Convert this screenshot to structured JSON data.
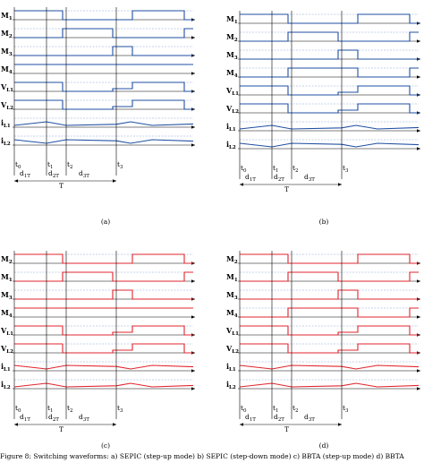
{
  "colors": {
    "blue": "#1f4fa3",
    "red": "#e0242c",
    "grid": "#6a8cc8",
    "axis": "#000000"
  },
  "panels": [
    {
      "id": "a",
      "caption": "(a)",
      "color_key": "blue",
      "signals": [
        {
          "label": "M",
          "sub": "1",
          "levels": [
            1,
            1,
            0,
            0,
            0,
            1,
            1,
            0,
            0
          ]
        },
        {
          "label": "M",
          "sub": "2",
          "levels": [
            0,
            0,
            1,
            1,
            0,
            0,
            0,
            1,
            1
          ]
        },
        {
          "label": "M",
          "sub": "3",
          "levels": [
            0,
            0,
            0,
            0,
            1,
            0,
            0,
            0,
            0
          ]
        },
        {
          "label": "M",
          "sub": "4",
          "levels": [
            1,
            1,
            1,
            1,
            1,
            1,
            1,
            1,
            1
          ]
        },
        {
          "label": "V",
          "sub": "L1",
          "levels": [
            1,
            1,
            0,
            0,
            0.3,
            1,
            1,
            0,
            0
          ]
        },
        {
          "label": "V",
          "sub": "L2",
          "levels": [
            1,
            1,
            0,
            0,
            0.3,
            1,
            1,
            0,
            0
          ]
        },
        {
          "label": "i",
          "sub": "L1",
          "wave": "tri-up"
        },
        {
          "label": "i",
          "sub": "L2",
          "wave": "tri-down"
        }
      ],
      "times": [
        "t0",
        "t1",
        "t2",
        "t3"
      ],
      "durations": [
        "d1T",
        "d2T",
        "d3T"
      ],
      "period": "T"
    },
    {
      "id": "b",
      "caption": "(b)",
      "color_key": "blue",
      "signals": [
        {
          "label": "M",
          "sub": "1",
          "levels": [
            1,
            1,
            0,
            0,
            0,
            1,
            1,
            0,
            0
          ]
        },
        {
          "label": "M",
          "sub": "2",
          "levels": [
            0,
            0,
            1,
            1,
            0,
            0,
            0,
            1,
            1
          ]
        },
        {
          "label": "M",
          "sub": "3",
          "levels": [
            0,
            0,
            0,
            0,
            1,
            0,
            0,
            0,
            0
          ]
        },
        {
          "label": "M",
          "sub": "4",
          "levels": [
            0,
            0,
            1,
            1,
            1,
            0,
            0,
            1,
            1
          ]
        },
        {
          "label": "V",
          "sub": "L1",
          "levels": [
            1,
            1,
            0,
            0,
            0.3,
            1,
            1,
            0,
            0
          ]
        },
        {
          "label": "V",
          "sub": "L2",
          "levels": [
            1,
            1,
            0,
            0,
            0.3,
            1,
            1,
            0,
            0
          ]
        },
        {
          "label": "i",
          "sub": "L1",
          "wave": "tri-up"
        },
        {
          "label": "i",
          "sub": "L2",
          "wave": "tri-down"
        }
      ],
      "times": [
        "t0",
        "t1",
        "t2",
        "t3"
      ],
      "durations": [
        "d1T",
        "d2T",
        "d3T"
      ],
      "period": "T"
    },
    {
      "id": "c",
      "caption": "(c)",
      "color_key": "red",
      "signals": [
        {
          "label": "M",
          "sub": "2",
          "levels": [
            1,
            1,
            0,
            0,
            0,
            1,
            1,
            0,
            0
          ]
        },
        {
          "label": "M",
          "sub": "1",
          "levels": [
            0,
            0,
            1,
            1,
            0,
            0,
            0,
            1,
            1
          ]
        },
        {
          "label": "M",
          "sub": "3",
          "levels": [
            0,
            0,
            0,
            0,
            1,
            0,
            0,
            0,
            0
          ]
        },
        {
          "label": "M",
          "sub": "4",
          "levels": [
            1,
            1,
            1,
            1,
            1,
            1,
            1,
            1,
            1
          ]
        },
        {
          "label": "V",
          "sub": "L1",
          "levels": [
            1,
            1,
            0,
            0,
            0.3,
            1,
            1,
            0,
            0
          ]
        },
        {
          "label": "V",
          "sub": "L2",
          "levels": [
            1,
            1,
            0,
            0,
            0.3,
            1,
            1,
            0,
            0
          ]
        },
        {
          "label": "i",
          "sub": "L1",
          "wave": "tri-down"
        },
        {
          "label": "i",
          "sub": "L2",
          "wave": "tri-up"
        }
      ],
      "times": [
        "t0",
        "t1",
        "t2",
        "t3"
      ],
      "durations": [
        "d1T",
        "d2T",
        "d3T"
      ],
      "period": "T"
    },
    {
      "id": "d",
      "caption": "(d)",
      "color_key": "red",
      "signals": [
        {
          "label": "M",
          "sub": "2",
          "levels": [
            1,
            1,
            0,
            0,
            0,
            1,
            1,
            0,
            0
          ]
        },
        {
          "label": "M",
          "sub": "1",
          "levels": [
            0,
            0,
            1,
            1,
            0,
            0,
            0,
            1,
            1
          ]
        },
        {
          "label": "M",
          "sub": "3",
          "levels": [
            0,
            0,
            0,
            0,
            1,
            0,
            0,
            0,
            0
          ]
        },
        {
          "label": "M",
          "sub": "4",
          "levels": [
            0,
            0,
            1,
            1,
            1,
            0,
            0,
            1,
            1
          ]
        },
        {
          "label": "V",
          "sub": "L1",
          "levels": [
            1,
            1,
            0,
            0,
            0.3,
            1,
            1,
            0,
            0
          ]
        },
        {
          "label": "V",
          "sub": "L2",
          "levels": [
            1,
            1,
            0,
            0,
            0.3,
            1,
            1,
            0,
            0
          ]
        },
        {
          "label": "i",
          "sub": "L1",
          "wave": "tri-down"
        },
        {
          "label": "i",
          "sub": "L2",
          "wave": "tri-up"
        }
      ],
      "times": [
        "t0",
        "t1",
        "t2",
        "t3"
      ],
      "durations": [
        "d1T",
        "d2T",
        "d3T"
      ],
      "period": "T"
    }
  ],
  "caption_text": "Figure 8: Switching waveforms: a) SEPIC (step-up mode) b) SEPIC (step-down mode) c) BBTA (step-up mode) d) BBTA"
}
